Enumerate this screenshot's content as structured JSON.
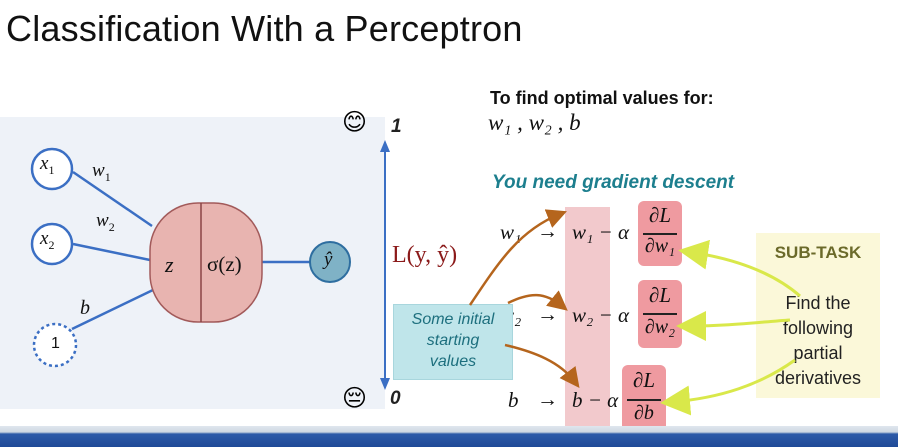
{
  "title": "Classification With a Perceptron",
  "perceptron": {
    "inputs": [
      "x",
      "x",
      "1"
    ],
    "input_subs": [
      "1",
      "2"
    ],
    "weights": [
      "w",
      "w",
      "b"
    ],
    "weight_subs": [
      "1",
      "2"
    ],
    "sum_node": "z",
    "activation_node": "σ(z)",
    "output": "ŷ"
  },
  "scale": {
    "top_value": "1",
    "bottom_value": "0",
    "top_emoji": "😊",
    "bottom_emoji": "😔",
    "loss_label": "L(y, ŷ)"
  },
  "optimal": {
    "heading": "To find optimal values for:",
    "vars": "w₁ , w₂ , b"
  },
  "gradient": {
    "heading": "You need gradient descent",
    "rows": [
      {
        "lhs": "w₁",
        "arrow": "→",
        "rhs": "w₁ − α",
        "num": "∂L",
        "den": "∂w₁"
      },
      {
        "lhs": "w₂",
        "arrow": "→",
        "rhs": "w₂ − α",
        "num": "∂L",
        "den": "∂w₂"
      },
      {
        "lhs": "b",
        "arrow": "→",
        "rhs": "b − α",
        "num": "∂L",
        "den": "∂b"
      }
    ]
  },
  "callout": {
    "lines": [
      "Some initial",
      "starting",
      "values"
    ]
  },
  "subtask": {
    "heading": "SUB-TASK",
    "lines": [
      "Find the",
      "following",
      "partial",
      "derivatives"
    ]
  },
  "colors": {
    "node_border": "#3b6fc4",
    "sum_fill": "#e8b4b0",
    "output_fill": "#7fb2c6",
    "teal": "#1d7f8e",
    "loss": "#8b1a1a",
    "brown_arrow": "#b5651d",
    "yellow_arrow": "#d9e84a"
  }
}
